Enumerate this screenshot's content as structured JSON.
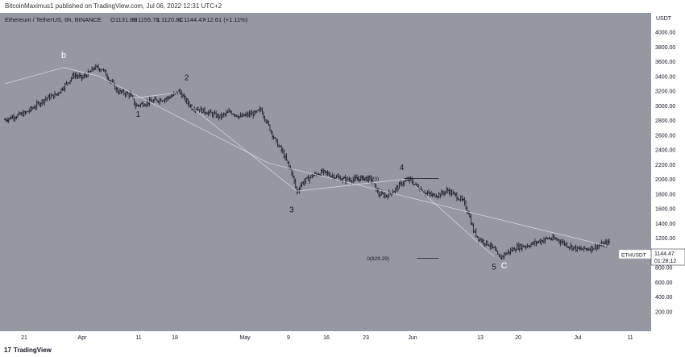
{
  "header": {
    "publish_line": "BitcoinMaximus1 published on TradingView.com, Jul 06, 2022 12:31 UTC+2"
  },
  "footer": {
    "logo_mark": "17",
    "logo_text": "TradingView"
  },
  "chart_data": {
    "type": "candlestick",
    "symbol_line": "Ethereum / TetherUS, 6h, BINANCE",
    "ohlc_labels": [
      "O",
      "H",
      "L",
      "C"
    ],
    "ohlc_values": [
      "1131.86",
      "1155.70",
      "1120.81",
      "1144.47"
    ],
    "change": "+12.61 (+1.11%)",
    "currency": "USDT",
    "y_ticks": [
      "4000.00",
      "3800.00",
      "3600.00",
      "3400.00",
      "3200.00",
      "3000.00",
      "2800.00",
      "2600.00",
      "2400.00",
      "2200.00",
      "2000.00",
      "1800.00",
      "1600.00",
      "1400.00",
      "1200.00",
      "1000.00",
      "800.00",
      "600.00",
      "400.00",
      "200.00"
    ],
    "x_ticks": [
      "21",
      "Apr",
      "11",
      "18",
      "May",
      "9",
      "16",
      "23",
      "Jun",
      "13",
      "20",
      "Jul",
      "11"
    ],
    "path": [
      [
        0,
        2810
      ],
      [
        3,
        2850
      ],
      [
        8,
        2900
      ],
      [
        12,
        3000
      ],
      [
        16,
        3100
      ],
      [
        20,
        3150
      ],
      [
        24,
        3300
      ],
      [
        27,
        3420
      ],
      [
        30,
        3380
      ],
      [
        33,
        3450
      ],
      [
        35,
        3520
      ],
      [
        38,
        3500
      ],
      [
        40,
        3400
      ],
      [
        42,
        3300
      ],
      [
        44,
        3200
      ],
      [
        46,
        3180
      ],
      [
        49,
        3150
      ],
      [
        51,
        3000
      ],
      [
        53,
        3020
      ],
      [
        56,
        3050
      ],
      [
        60,
        3080
      ],
      [
        63,
        3100
      ],
      [
        66,
        3150
      ],
      [
        68,
        3200
      ],
      [
        70,
        3100
      ],
      [
        73,
        2980
      ],
      [
        76,
        2950
      ],
      [
        80,
        2900
      ],
      [
        84,
        2850
      ],
      [
        88,
        2920
      ],
      [
        92,
        2850
      ],
      [
        95,
        2880
      ],
      [
        98,
        2900
      ],
      [
        100,
        2950
      ],
      [
        102,
        2800
      ],
      [
        104,
        2650
      ],
      [
        106,
        2500
      ],
      [
        108,
        2400
      ],
      [
        110,
        2250
      ],
      [
        112,
        2100
      ],
      [
        114,
        1830
      ],
      [
        116,
        1950
      ],
      [
        120,
        2050
      ],
      [
        124,
        2100
      ],
      [
        128,
        2050
      ],
      [
        132,
        2000
      ],
      [
        136,
        2000
      ],
      [
        140,
        2020
      ],
      [
        143,
        2000
      ],
      [
        146,
        1800
      ],
      [
        149,
        1780
      ],
      [
        152,
        1850
      ],
      [
        155,
        1950
      ],
      [
        158,
        2000
      ],
      [
        161,
        1900
      ],
      [
        164,
        1820
      ],
      [
        167,
        1780
      ],
      [
        170,
        1800
      ],
      [
        173,
        1850
      ],
      [
        176,
        1780
      ],
      [
        179,
        1700
      ],
      [
        181,
        1550
      ],
      [
        183,
        1300
      ],
      [
        185,
        1200
      ],
      [
        187,
        1150
      ],
      [
        189,
        1120
      ],
      [
        191,
        1050
      ],
      [
        193,
        935
      ],
      [
        196,
        1000
      ],
      [
        200,
        1080
      ],
      [
        204,
        1100
      ],
      [
        208,
        1150
      ],
      [
        212,
        1200
      ],
      [
        216,
        1180
      ],
      [
        220,
        1100
      ],
      [
        224,
        1050
      ],
      [
        228,
        1060
      ],
      [
        232,
        1100
      ],
      [
        236,
        1144
      ]
    ],
    "wave_labels": [
      {
        "text": "b",
        "t": 23,
        "price": 3650
      },
      {
        "text": "1",
        "t": 52,
        "price": 2850
      },
      {
        "text": "2",
        "t": 71,
        "price": 3350
      },
      {
        "text": "3",
        "t": 112,
        "price": 1550
      },
      {
        "text": "4",
        "t": 155,
        "price": 2125
      },
      {
        "text": "5",
        "t": 191,
        "price": 775
      },
      {
        "text": "C",
        "t": 195,
        "price": 790
      }
    ],
    "fib_levels": [
      {
        "label": "1(2011.23)",
        "price": 2011.23,
        "t_start": 137,
        "t_end": 160
      },
      {
        "label": "0(929.29)",
        "price": 929.29,
        "t_start": 142,
        "t_end": 160
      }
    ],
    "wave_lines": [
      [
        [
          0,
          3300
        ],
        [
          23,
          3520
        ],
        [
          37,
          3400
        ],
        [
          103,
          2220
        ],
        [
          236,
          1090
        ]
      ],
      [
        [
          114,
          1840
        ],
        [
          158,
          2010
        ]
      ],
      [
        [
          73,
          2980
        ],
        [
          114,
          1840
        ]
      ],
      [
        [
          49,
          3100
        ],
        [
          68,
          3180
        ]
      ],
      [
        [
          160,
          1920
        ],
        [
          191,
          950
        ]
      ]
    ],
    "last_price_tag": {
      "symbol": "ETHUSDT",
      "price": "1144.47",
      "countdown": "01:28:12"
    },
    "ylim": [
      100,
      4150
    ]
  }
}
